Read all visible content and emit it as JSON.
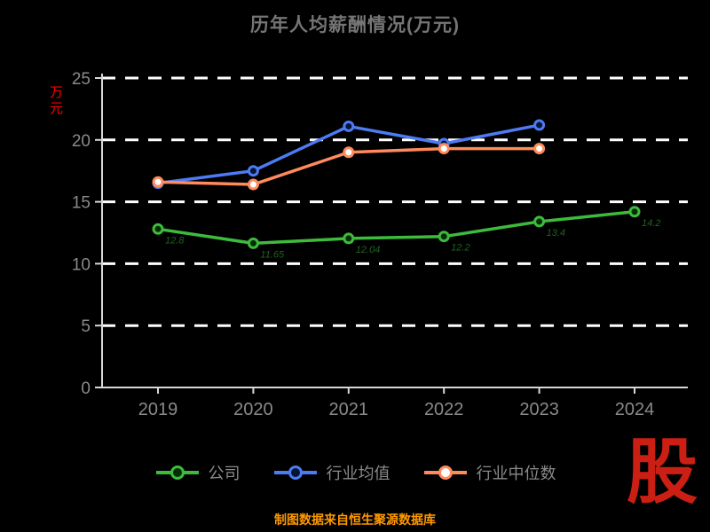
{
  "footer": "制图数据来自恒生聚源数据库",
  "logo_text": "股",
  "colors": {
    "background": "#000000",
    "title": "#757575",
    "axis": "#d8d8d8",
    "grid": "#ffffff",
    "tick_label": "#8a8a8a",
    "ylabel": "#ff0000",
    "footer": "#ff9900",
    "logo": "#cc1f14"
  },
  "chart_data": {
    "type": "line",
    "title": "历年人均薪酬情况(万元)",
    "xlabel": "",
    "ylabel": "万元",
    "categories": [
      "2019",
      "2020",
      "2021",
      "2022",
      "2023",
      "2024"
    ],
    "yticks": [
      0,
      5,
      10,
      15,
      20,
      25
    ],
    "ylim": [
      0,
      25
    ],
    "grid": "dashed-horizontal-white",
    "legend_position": "bottom",
    "series": [
      {
        "name": "公司",
        "color": "#3dbb3d",
        "marker_fill": "#062c06",
        "label_color": "#1e641e",
        "values": [
          12.8,
          11.65,
          12.04,
          12.2,
          13.4,
          14.2
        ],
        "labels": [
          "12.8",
          "11.65",
          "12.04",
          "12.2",
          "13.4",
          "14.2"
        ]
      },
      {
        "name": "行业均值",
        "color": "#4d7bf3",
        "marker_fill": "#041536",
        "values": [
          16.5,
          17.5,
          21.1,
          19.7,
          21.2,
          null
        ]
      },
      {
        "name": "行业中位数",
        "color": "#ff8a5c",
        "marker_fill": "#ffffff",
        "values": [
          16.6,
          16.4,
          19.0,
          19.3,
          19.3,
          null
        ]
      }
    ]
  }
}
